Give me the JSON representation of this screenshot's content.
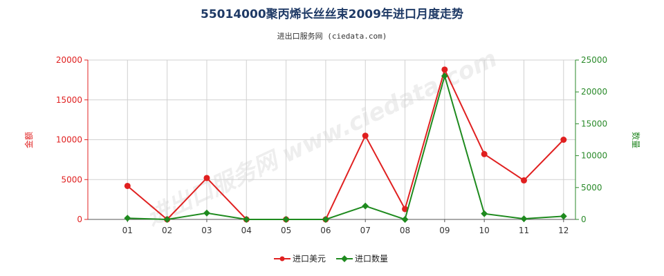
{
  "chart_data": {
    "type": "line",
    "title": "55014000聚丙烯长丝丝束2009年进口月度走势",
    "subtitle": "进出口服务网 (ciedata.com)",
    "watermark": "进出口服务网 www.ciedata.com",
    "categories": [
      "01",
      "02",
      "03",
      "04",
      "05",
      "06",
      "07",
      "08",
      "09",
      "10",
      "11",
      "12"
    ],
    "y_left": {
      "label": "金额",
      "range": [
        0,
        20000
      ],
      "ticks": [
        "0",
        "5000",
        "10000",
        "15000",
        "20000"
      ],
      "color": "#e02020"
    },
    "y_right": {
      "label": "数量",
      "range": [
        0,
        25000
      ],
      "ticks": [
        "0",
        "5000",
        "10000",
        "15000",
        "20000",
        "25000"
      ],
      "color": "#2a8a2a"
    },
    "grid": true,
    "legend_position": "bottom",
    "series": [
      {
        "name": "进口美元",
        "axis": "left",
        "color": "#e02020",
        "values": [
          4200,
          0,
          5200,
          0,
          0,
          0,
          10500,
          1300,
          18800,
          8200,
          4900,
          10000
        ]
      },
      {
        "name": "进口数量",
        "axis": "right",
        "color": "#1e8a1e",
        "values": [
          200,
          0,
          1000,
          0,
          0,
          0,
          2100,
          0,
          22500,
          900,
          100,
          500
        ]
      }
    ]
  }
}
